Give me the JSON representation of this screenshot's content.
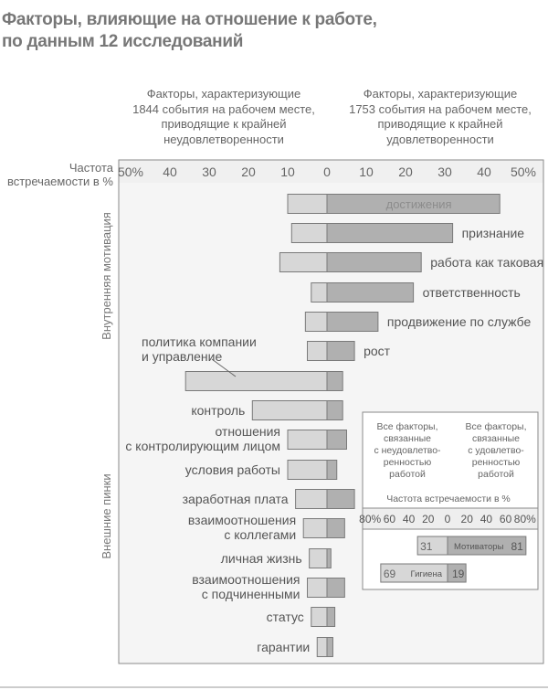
{
  "title_lines": [
    "Факторы, влияющие на отношение к работе,",
    "по данным 12 исследований"
  ],
  "left_header": [
    "Факторы, характеризующие",
    "1844 события на рабочем месте,",
    "приводящие к крайней",
    "неудовлетворенности"
  ],
  "right_header": [
    "Факторы, характеризующие",
    "1753 события на рабочем месте,",
    "приводящие к крайней",
    "удовлетворенности"
  ],
  "freq_label": [
    "Частота",
    "встречаемости в %"
  ],
  "chart_data": {
    "type": "bar",
    "orientation": "horizontal-diverging",
    "title": "Факторы, влияющие на отношение к работе, по данным 12 исследований",
    "x_ticks": [
      "50%",
      "40",
      "30",
      "20",
      "10",
      "0",
      "10",
      "20",
      "30",
      "40",
      "50%"
    ],
    "xlim": [
      -50,
      50
    ],
    "group_labels": {
      "intrinsic": "Внутренняя мотивация",
      "hygiene": "Внешние пинки"
    },
    "series": [
      {
        "name": "неудовлетворенность",
        "color": "#d7d7d7"
      },
      {
        "name": "удовлетворенность",
        "color": "#b0b0b0"
      }
    ],
    "categories": [
      {
        "label": "достижения",
        "group": "intrinsic",
        "dissatisfaction": 10,
        "satisfaction": 44
      },
      {
        "label": "признание",
        "group": "intrinsic",
        "dissatisfaction": 9,
        "satisfaction": 32
      },
      {
        "label": "работа как таковая",
        "group": "intrinsic",
        "dissatisfaction": 12,
        "satisfaction": 24
      },
      {
        "label": "ответственность",
        "group": "intrinsic",
        "dissatisfaction": 4,
        "satisfaction": 22
      },
      {
        "label": "продвижение по службе",
        "group": "intrinsic",
        "dissatisfaction": 5.5,
        "satisfaction": 13
      },
      {
        "label": "рост",
        "group": "intrinsic",
        "dissatisfaction": 5,
        "satisfaction": 7
      },
      {
        "label": "политика компании и управление",
        "group": "hygiene",
        "dissatisfaction": 36,
        "satisfaction": 4
      },
      {
        "label": "контроль",
        "group": "hygiene",
        "dissatisfaction": 19,
        "satisfaction": 4
      },
      {
        "label": "отношения с контролирующим лицом",
        "group": "hygiene",
        "dissatisfaction": 10,
        "satisfaction": 5
      },
      {
        "label": "условия работы",
        "group": "hygiene",
        "dissatisfaction": 10,
        "satisfaction": 2.5
      },
      {
        "label": "заработная плата",
        "group": "hygiene",
        "dissatisfaction": 8,
        "satisfaction": 7
      },
      {
        "label": "взаимоотношения с коллегами",
        "group": "hygiene",
        "dissatisfaction": 6,
        "satisfaction": 4.5
      },
      {
        "label": "личная жизнь",
        "group": "hygiene",
        "dissatisfaction": 4.5,
        "satisfaction": 1
      },
      {
        "label": "взаимоотношения с подчиненными",
        "group": "hygiene",
        "dissatisfaction": 5,
        "satisfaction": 4.5
      },
      {
        "label": "статус",
        "group": "hygiene",
        "dissatisfaction": 4,
        "satisfaction": 2
      },
      {
        "label": "гарантии",
        "group": "hygiene",
        "dissatisfaction": 2.5,
        "satisfaction": 1.5
      }
    ],
    "inset": {
      "left_header": [
        "Все факторы,",
        "связанные",
        "с неудовлетво-",
        "ренностью",
        "работой"
      ],
      "right_header": [
        "Все факторы,",
        "связанные",
        "с удовлетво-",
        "ренностью",
        "работой"
      ],
      "axis_label": "Частота встречаемости в %",
      "ticks": [
        "80%",
        "60",
        "40",
        "20",
        "0",
        "20",
        "40",
        "60",
        "80%"
      ],
      "xlim": [
        -80,
        80
      ],
      "bars": [
        {
          "name": "Мотиваторы",
          "dissatisfaction": 31,
          "satisfaction": 81,
          "dis_label": "31",
          "sat_label": "81"
        },
        {
          "name": "Гигиена",
          "dissatisfaction": 69,
          "satisfaction": 19,
          "dis_label": "69",
          "sat_label": "19"
        }
      ]
    }
  }
}
